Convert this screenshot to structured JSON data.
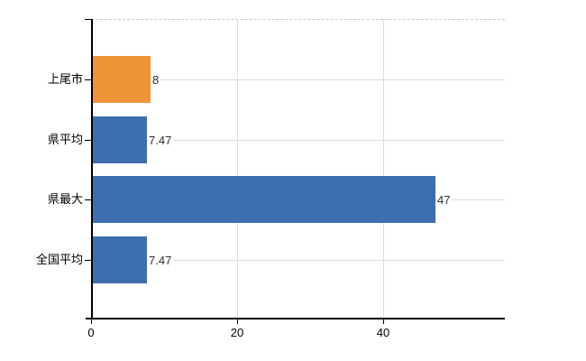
{
  "chart_data": {
    "type": "bar",
    "orientation": "horizontal",
    "title": "",
    "xlabel": "",
    "ylabel": "",
    "categories": [
      "上尾市",
      "県平均",
      "県最大",
      "全国平均"
    ],
    "values": [
      8,
      7.47,
      47,
      7.47
    ],
    "value_labels": [
      "8",
      "7.47",
      "47",
      "7.47"
    ],
    "bar_colors": [
      "#ed9438",
      "#3d6eb0",
      "#3d6eb0",
      "#3d6eb0"
    ],
    "x_ticks": [
      0,
      20,
      40
    ],
    "x_tick_labels": [
      "0",
      "20",
      "40"
    ],
    "xlim": [
      0,
      56.7
    ],
    "grid": true,
    "legend": "none"
  },
  "colors": {
    "highlight_bar": "#ed9438",
    "default_bar": "#3d6eb0",
    "gridline": "#d9ddd9",
    "top_border": "#c9c9c4",
    "axis": "#000000",
    "background": "#ffffff",
    "value_label": "#2f2f2f"
  }
}
